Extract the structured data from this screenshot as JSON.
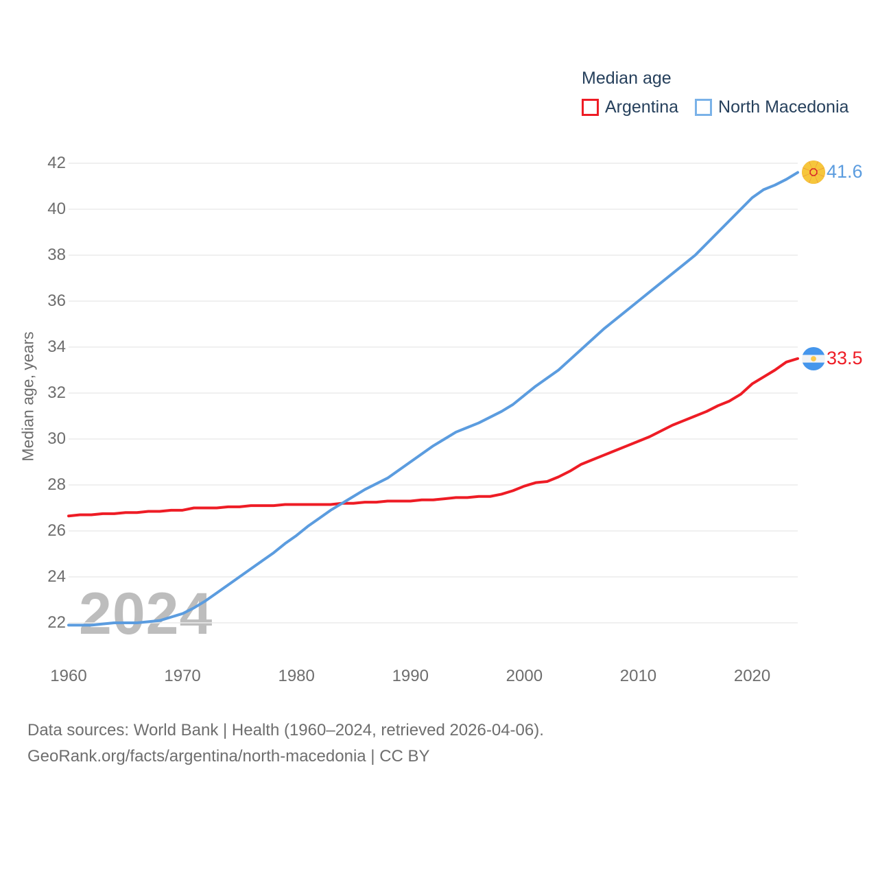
{
  "legend": {
    "title": "Median age",
    "items": [
      {
        "label": "Argentina",
        "color": "#ee1c25"
      },
      {
        "label": "North Macedonia",
        "color": "#7ab2e8"
      }
    ]
  },
  "chart_data": {
    "type": "line",
    "title": "Median age",
    "ylabel": "Median age, years",
    "xlabel": "",
    "ylim": [
      22,
      42
    ],
    "xlim": [
      1960,
      2024
    ],
    "yticks": [
      22,
      24,
      26,
      28,
      30,
      32,
      34,
      36,
      38,
      40,
      42
    ],
    "xticks": [
      1960,
      1970,
      1980,
      1990,
      2000,
      2010,
      2020
    ],
    "grid": "horizontal",
    "legend_position": "top-right",
    "watermark": "2024",
    "x": [
      1960,
      1961,
      1962,
      1963,
      1964,
      1965,
      1966,
      1967,
      1968,
      1969,
      1970,
      1971,
      1972,
      1973,
      1974,
      1975,
      1976,
      1977,
      1978,
      1979,
      1980,
      1981,
      1982,
      1983,
      1984,
      1985,
      1986,
      1987,
      1988,
      1989,
      1990,
      1991,
      1992,
      1993,
      1994,
      1995,
      1996,
      1997,
      1998,
      1999,
      2000,
      2001,
      2002,
      2003,
      2004,
      2005,
      2006,
      2007,
      2008,
      2009,
      2010,
      2011,
      2012,
      2013,
      2014,
      2015,
      2016,
      2017,
      2018,
      2019,
      2020,
      2021,
      2022,
      2023,
      2024
    ],
    "series": [
      {
        "name": "Argentina",
        "color": "#ee1c25",
        "end_label": "33.5",
        "flag": "argentina-flag",
        "values": [
          26.65,
          26.7,
          26.7,
          26.75,
          26.75,
          26.8,
          26.8,
          26.85,
          26.85,
          26.9,
          26.9,
          27.0,
          27.0,
          27.0,
          27.05,
          27.05,
          27.1,
          27.1,
          27.1,
          27.15,
          27.15,
          27.15,
          27.15,
          27.15,
          27.2,
          27.2,
          27.25,
          27.25,
          27.3,
          27.3,
          27.3,
          27.35,
          27.35,
          27.4,
          27.45,
          27.45,
          27.5,
          27.5,
          27.6,
          27.75,
          27.95,
          28.1,
          28.15,
          28.35,
          28.6,
          28.9,
          29.1,
          29.3,
          29.5,
          29.7,
          29.9,
          30.1,
          30.35,
          30.6,
          30.8,
          31.0,
          31.2,
          31.45,
          31.65,
          31.95,
          32.4,
          32.7,
          33.0,
          33.35,
          33.5
        ]
      },
      {
        "name": "North Macedonia",
        "color": "#5b9cdf",
        "end_label": "41.6",
        "flag": "north-macedonia-flag",
        "values": [
          21.9,
          21.9,
          21.9,
          21.95,
          22.0,
          22.0,
          22.0,
          22.05,
          22.1,
          22.25,
          22.4,
          22.65,
          22.95,
          23.3,
          23.65,
          24.0,
          24.35,
          24.7,
          25.05,
          25.45,
          25.8,
          26.2,
          26.55,
          26.9,
          27.2,
          27.5,
          27.8,
          28.05,
          28.3,
          28.65,
          29.0,
          29.35,
          29.7,
          30.0,
          30.3,
          30.5,
          30.7,
          30.95,
          31.2,
          31.5,
          31.9,
          32.3,
          32.65,
          33.0,
          33.45,
          33.9,
          34.35,
          34.8,
          35.2,
          35.6,
          36.0,
          36.4,
          36.8,
          37.2,
          37.6,
          38.0,
          38.5,
          39.0,
          39.5,
          40.0,
          40.5,
          40.85,
          41.05,
          41.3,
          41.6
        ]
      }
    ]
  },
  "footer": {
    "line1": "Data sources: World Bank | Health (1960–2024, retrieved 2026-04-06).",
    "line2": "GeoRank.org/facts/argentina/north-macedonia | CC BY"
  }
}
